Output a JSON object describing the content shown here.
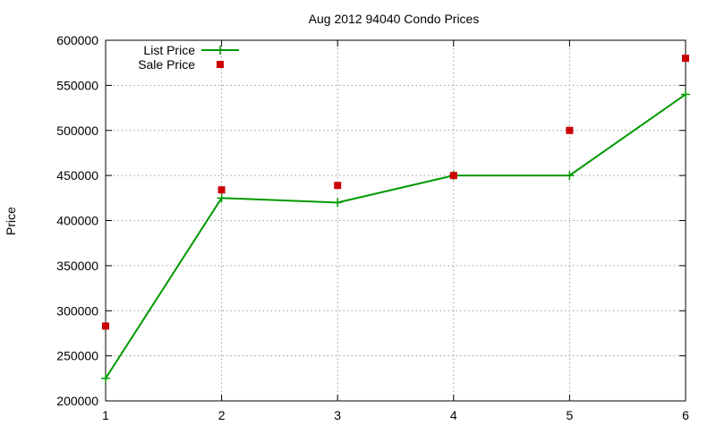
{
  "chart_data": {
    "type": "line",
    "title": "Aug 2012 94040 Condo Prices",
    "xlabel": "",
    "ylabel": "Price",
    "x": [
      1,
      2,
      3,
      4,
      5,
      6
    ],
    "xlim": [
      1,
      6
    ],
    "ylim": [
      200000,
      600000
    ],
    "xticks": [
      "1",
      "2",
      "3",
      "4",
      "5",
      "6"
    ],
    "yticks": [
      "200000",
      "250000",
      "300000",
      "350000",
      "400000",
      "450000",
      "500000",
      "550000",
      "600000"
    ],
    "grid": true,
    "legend_position": "top-left",
    "series": [
      {
        "name": "List Price",
        "style": "line-with-plus-markers",
        "color": "#009900",
        "values": [
          225000,
          425000,
          420000,
          450000,
          450000,
          540000
        ]
      },
      {
        "name": "Sale Price",
        "style": "square-markers",
        "color": "#cc0000",
        "values": [
          283000,
          434000,
          439000,
          450000,
          500000,
          580000
        ]
      }
    ]
  }
}
